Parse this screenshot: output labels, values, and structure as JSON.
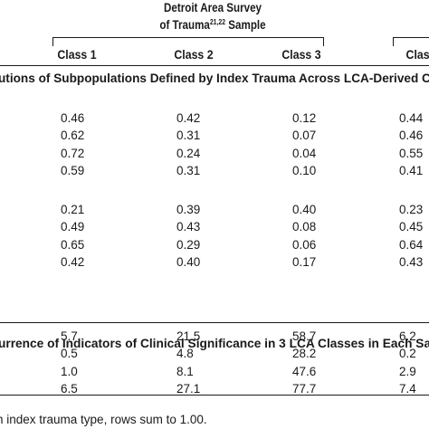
{
  "header": {
    "survey_line1": "Detroit Area Survey",
    "survey_line2_prefix": "of Trauma",
    "survey_line2_sup": "21,22",
    "survey_line2_suffix": " Sample",
    "classes": [
      "Class 1",
      "Class 2",
      "Class 3",
      "Class"
    ]
  },
  "section1": {
    "title": "utions of Subpopulations Defined by Index Trauma Across LCA-Derived C",
    "group_a": [
      [
        "0.46",
        "0.42",
        "0.12",
        "0.44"
      ],
      [
        "0.62",
        "0.31",
        "0.07",
        "0.46"
      ],
      [
        "0.72",
        "0.24",
        "0.04",
        "0.55"
      ],
      [
        "0.59",
        "0.31",
        "0.10",
        "0.41"
      ]
    ],
    "group_b": [
      [
        "0.21",
        "0.39",
        "0.40",
        "0.23"
      ],
      [
        "0.49",
        "0.43",
        "0.08",
        "0.45"
      ],
      [
        "0.65",
        "0.29",
        "0.06",
        "0.64"
      ],
      [
        "0.42",
        "0.40",
        "0.17",
        "0.43"
      ]
    ]
  },
  "section2": {
    "title": "urrence of Indicators of Clinical Significance in 3 LCA Classes in Each Sa",
    "rows": [
      [
        "5.7",
        "21.5",
        "58.7",
        "6.2"
      ],
      [
        "0.5",
        "4.8",
        "28.2",
        "0.2"
      ],
      [
        "1.0",
        "8.1",
        "47.6",
        "2.9"
      ],
      [
        "6.5",
        "27.1",
        "77.7",
        "7.4"
      ]
    ]
  },
  "footnote": "h index trauma type, rows sum to 1.00."
}
